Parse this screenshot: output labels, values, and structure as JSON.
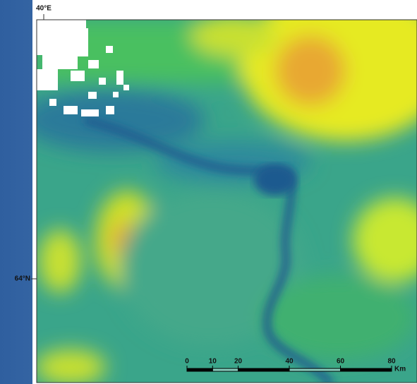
{
  "map": {
    "longitude_label": "40°E",
    "latitude_label": "64°N",
    "scale_bar": {
      "ticks": [
        0,
        10,
        20,
        40,
        60,
        80
      ],
      "unit": "Km"
    }
  }
}
